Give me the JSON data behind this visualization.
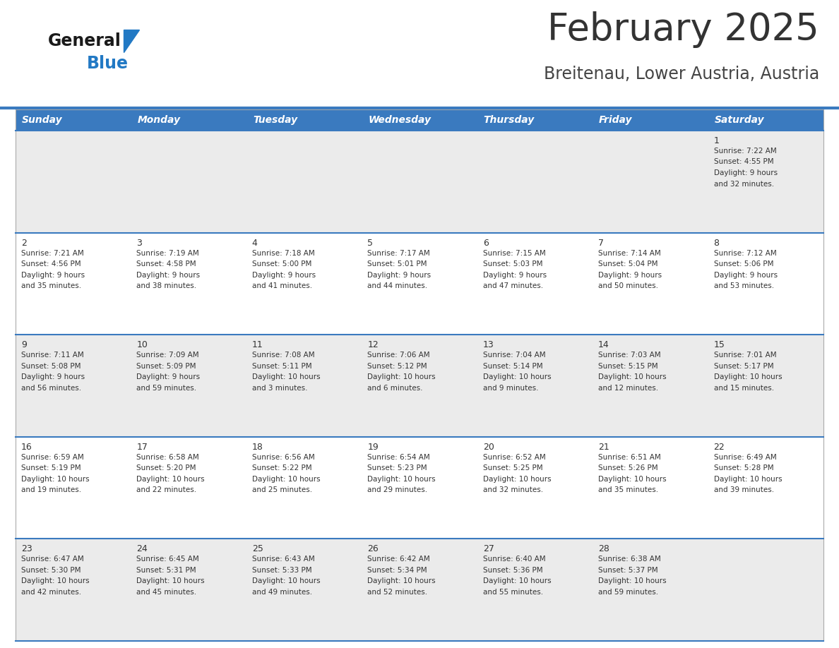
{
  "title": "February 2025",
  "subtitle": "Breitenau, Lower Austria, Austria",
  "header_bg": "#3a7abf",
  "header_text": "#ffffff",
  "row_bg_light": "#ebebeb",
  "row_bg_white": "#ffffff",
  "separator_color": "#3a7abf",
  "day_headers": [
    "Sunday",
    "Monday",
    "Tuesday",
    "Wednesday",
    "Thursday",
    "Friday",
    "Saturday"
  ],
  "days": [
    {
      "date": 1,
      "col": 6,
      "row": 0,
      "sunrise": "7:22 AM",
      "sunset": "4:55 PM",
      "daylight_h": "9 hours",
      "daylight_m": "and 32 minutes."
    },
    {
      "date": 2,
      "col": 0,
      "row": 1,
      "sunrise": "7:21 AM",
      "sunset": "4:56 PM",
      "daylight_h": "9 hours",
      "daylight_m": "and 35 minutes."
    },
    {
      "date": 3,
      "col": 1,
      "row": 1,
      "sunrise": "7:19 AM",
      "sunset": "4:58 PM",
      "daylight_h": "9 hours",
      "daylight_m": "and 38 minutes."
    },
    {
      "date": 4,
      "col": 2,
      "row": 1,
      "sunrise": "7:18 AM",
      "sunset": "5:00 PM",
      "daylight_h": "9 hours",
      "daylight_m": "and 41 minutes."
    },
    {
      "date": 5,
      "col": 3,
      "row": 1,
      "sunrise": "7:17 AM",
      "sunset": "5:01 PM",
      "daylight_h": "9 hours",
      "daylight_m": "and 44 minutes."
    },
    {
      "date": 6,
      "col": 4,
      "row": 1,
      "sunrise": "7:15 AM",
      "sunset": "5:03 PM",
      "daylight_h": "9 hours",
      "daylight_m": "and 47 minutes."
    },
    {
      "date": 7,
      "col": 5,
      "row": 1,
      "sunrise": "7:14 AM",
      "sunset": "5:04 PM",
      "daylight_h": "9 hours",
      "daylight_m": "and 50 minutes."
    },
    {
      "date": 8,
      "col": 6,
      "row": 1,
      "sunrise": "7:12 AM",
      "sunset": "5:06 PM",
      "daylight_h": "9 hours",
      "daylight_m": "and 53 minutes."
    },
    {
      "date": 9,
      "col": 0,
      "row": 2,
      "sunrise": "7:11 AM",
      "sunset": "5:08 PM",
      "daylight_h": "9 hours",
      "daylight_m": "and 56 minutes."
    },
    {
      "date": 10,
      "col": 1,
      "row": 2,
      "sunrise": "7:09 AM",
      "sunset": "5:09 PM",
      "daylight_h": "9 hours",
      "daylight_m": "and 59 minutes."
    },
    {
      "date": 11,
      "col": 2,
      "row": 2,
      "sunrise": "7:08 AM",
      "sunset": "5:11 PM",
      "daylight_h": "10 hours",
      "daylight_m": "and 3 minutes."
    },
    {
      "date": 12,
      "col": 3,
      "row": 2,
      "sunrise": "7:06 AM",
      "sunset": "5:12 PM",
      "daylight_h": "10 hours",
      "daylight_m": "and 6 minutes."
    },
    {
      "date": 13,
      "col": 4,
      "row": 2,
      "sunrise": "7:04 AM",
      "sunset": "5:14 PM",
      "daylight_h": "10 hours",
      "daylight_m": "and 9 minutes."
    },
    {
      "date": 14,
      "col": 5,
      "row": 2,
      "sunrise": "7:03 AM",
      "sunset": "5:15 PM",
      "daylight_h": "10 hours",
      "daylight_m": "and 12 minutes."
    },
    {
      "date": 15,
      "col": 6,
      "row": 2,
      "sunrise": "7:01 AM",
      "sunset": "5:17 PM",
      "daylight_h": "10 hours",
      "daylight_m": "and 15 minutes."
    },
    {
      "date": 16,
      "col": 0,
      "row": 3,
      "sunrise": "6:59 AM",
      "sunset": "5:19 PM",
      "daylight_h": "10 hours",
      "daylight_m": "and 19 minutes."
    },
    {
      "date": 17,
      "col": 1,
      "row": 3,
      "sunrise": "6:58 AM",
      "sunset": "5:20 PM",
      "daylight_h": "10 hours",
      "daylight_m": "and 22 minutes."
    },
    {
      "date": 18,
      "col": 2,
      "row": 3,
      "sunrise": "6:56 AM",
      "sunset": "5:22 PM",
      "daylight_h": "10 hours",
      "daylight_m": "and 25 minutes."
    },
    {
      "date": 19,
      "col": 3,
      "row": 3,
      "sunrise": "6:54 AM",
      "sunset": "5:23 PM",
      "daylight_h": "10 hours",
      "daylight_m": "and 29 minutes."
    },
    {
      "date": 20,
      "col": 4,
      "row": 3,
      "sunrise": "6:52 AM",
      "sunset": "5:25 PM",
      "daylight_h": "10 hours",
      "daylight_m": "and 32 minutes."
    },
    {
      "date": 21,
      "col": 5,
      "row": 3,
      "sunrise": "6:51 AM",
      "sunset": "5:26 PM",
      "daylight_h": "10 hours",
      "daylight_m": "and 35 minutes."
    },
    {
      "date": 22,
      "col": 6,
      "row": 3,
      "sunrise": "6:49 AM",
      "sunset": "5:28 PM",
      "daylight_h": "10 hours",
      "daylight_m": "and 39 minutes."
    },
    {
      "date": 23,
      "col": 0,
      "row": 4,
      "sunrise": "6:47 AM",
      "sunset": "5:30 PM",
      "daylight_h": "10 hours",
      "daylight_m": "and 42 minutes."
    },
    {
      "date": 24,
      "col": 1,
      "row": 4,
      "sunrise": "6:45 AM",
      "sunset": "5:31 PM",
      "daylight_h": "10 hours",
      "daylight_m": "and 45 minutes."
    },
    {
      "date": 25,
      "col": 2,
      "row": 4,
      "sunrise": "6:43 AM",
      "sunset": "5:33 PM",
      "daylight_h": "10 hours",
      "daylight_m": "and 49 minutes."
    },
    {
      "date": 26,
      "col": 3,
      "row": 4,
      "sunrise": "6:42 AM",
      "sunset": "5:34 PM",
      "daylight_h": "10 hours",
      "daylight_m": "and 52 minutes."
    },
    {
      "date": 27,
      "col": 4,
      "row": 4,
      "sunrise": "6:40 AM",
      "sunset": "5:36 PM",
      "daylight_h": "10 hours",
      "daylight_m": "and 55 minutes."
    },
    {
      "date": 28,
      "col": 5,
      "row": 4,
      "sunrise": "6:38 AM",
      "sunset": "5:37 PM",
      "daylight_h": "10 hours",
      "daylight_m": "and 59 minutes."
    }
  ],
  "num_rows": 5,
  "num_cols": 7,
  "logo_color_general": "#1a1a1a",
  "logo_color_blue": "#2279c4",
  "logo_triangle_color": "#2279c4",
  "title_color": "#333333",
  "subtitle_color": "#444444",
  "cell_text_color": "#333333",
  "date_number_color": "#333333"
}
